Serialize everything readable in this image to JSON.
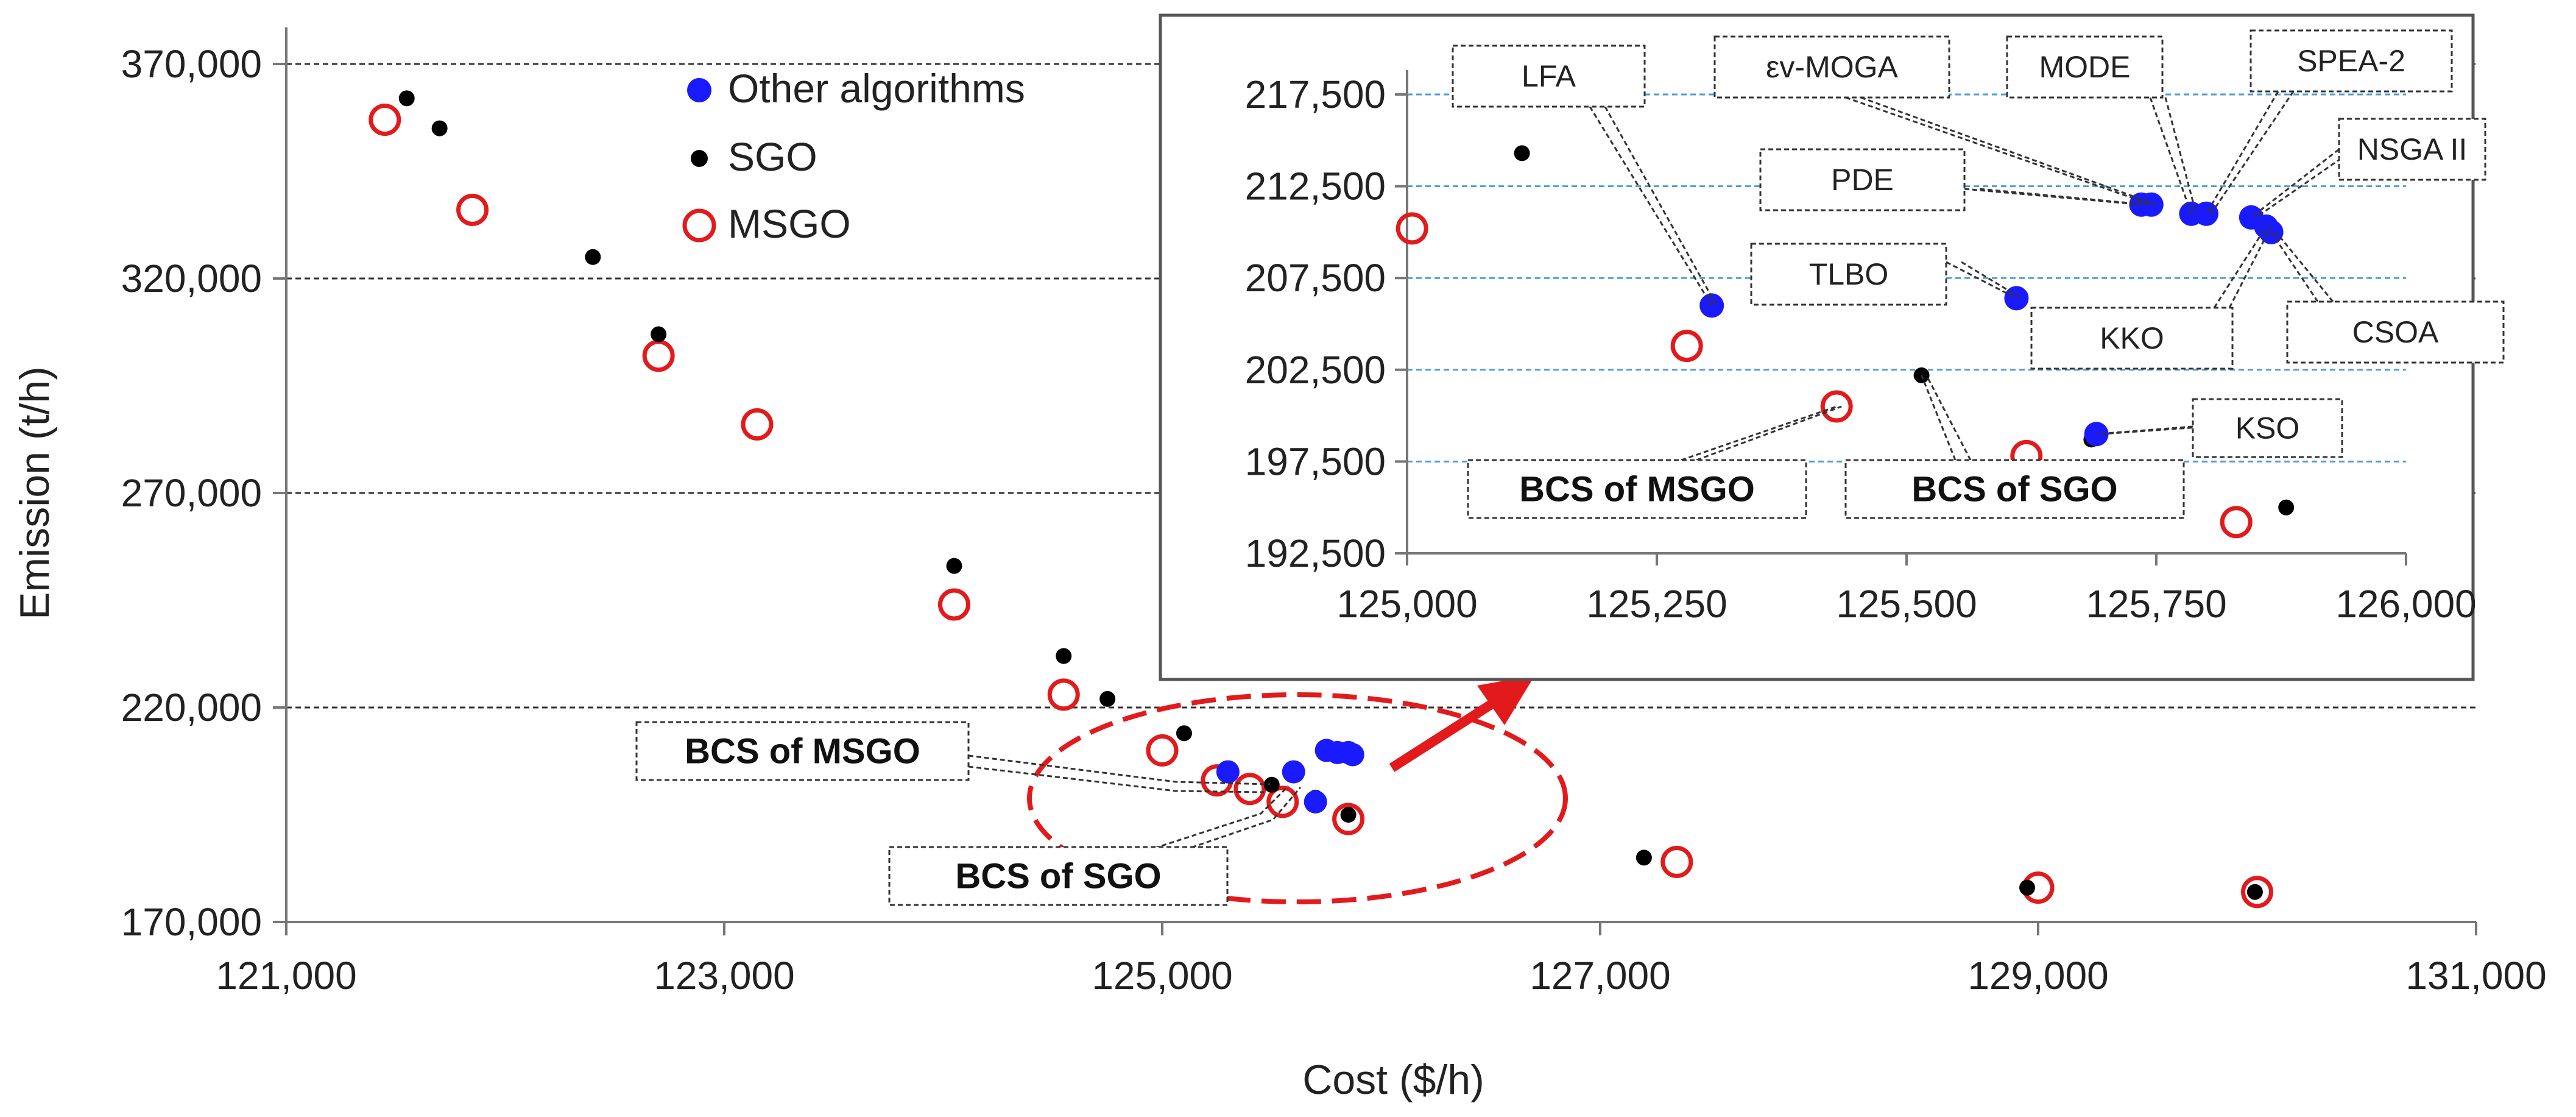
{
  "chart_data": [
    {
      "id": "main",
      "type": "scatter",
      "title": "",
      "xlabel": "Cost ($/h)",
      "ylabel": "Emission (t/h)",
      "xlim": [
        121000,
        131000
      ],
      "ylim": [
        170000,
        370000
      ],
      "x_ticks": [
        121000,
        123000,
        125000,
        127000,
        129000,
        131000
      ],
      "y_ticks": [
        170000,
        220000,
        270000,
        320000,
        370000
      ],
      "x_tick_labels": [
        "121,000",
        "123,000",
        "125,000",
        "127,000",
        "129,000",
        "131,000"
      ],
      "y_tick_labels": [
        "170,000",
        "220,000",
        "270,000",
        "320,000",
        "370,000"
      ],
      "grid": "horizontal-dashed",
      "legend": {
        "placement": "top-center",
        "entries": [
          "Other algorithms",
          "SGO",
          "MSGO"
        ]
      },
      "series": [
        {
          "name": "Other algorithms",
          "color": "#1a1aff",
          "marker": "filled-circle",
          "points": [
            [
              125300,
              205000
            ],
            [
              125600,
              205000
            ],
            [
              125700,
              198000
            ],
            [
              125750,
              210000
            ],
            [
              125800,
              209500
            ],
            [
              125850,
              209500
            ],
            [
              125870,
              209000
            ]
          ]
        },
        {
          "name": "SGO",
          "color": "#000000",
          "marker": "dot",
          "points": [
            [
              121550,
              362000
            ],
            [
              121700,
              355000
            ],
            [
              122400,
              325000
            ],
            [
              122700,
              307000
            ],
            [
              124050,
              253000
            ],
            [
              124550,
              232000
            ],
            [
              124750,
              222000
            ],
            [
              125100,
              214000
            ],
            [
              125500,
              202000
            ],
            [
              125700,
              199000
            ],
            [
              125850,
              195000
            ],
            [
              127200,
              185000
            ],
            [
              128950,
              178000
            ],
            [
              129990,
              177000
            ]
          ]
        },
        {
          "name": "MSGO",
          "color": "#e31a1c",
          "marker": "hollow-circle",
          "points": [
            [
              121450,
              357000
            ],
            [
              121850,
              336000
            ],
            [
              122700,
              302000
            ],
            [
              123150,
              286000
            ],
            [
              124050,
              244000
            ],
            [
              124550,
              223000
            ],
            [
              125000,
              210000
            ],
            [
              125250,
              203000
            ],
            [
              125400,
              201000
            ],
            [
              125550,
              198000
            ],
            [
              125850,
              194000
            ],
            [
              127350,
              184000
            ],
            [
              129000,
              178000
            ],
            [
              130000,
              177000
            ]
          ]
        }
      ],
      "annotations": [
        {
          "label": "BCS of MSGO",
          "bold": true
        },
        {
          "label": "BCS of SGO",
          "bold": true
        }
      ],
      "highlight": {
        "shape": "dashed-ellipse",
        "color": "#e31a1c",
        "arrow_to": "inset"
      }
    },
    {
      "id": "inset",
      "type": "scatter",
      "title": "",
      "xlabel": "",
      "ylabel": "",
      "xlim": [
        125000,
        126000
      ],
      "ylim": [
        192500,
        217500
      ],
      "x_ticks": [
        125000,
        125250,
        125500,
        125750,
        126000
      ],
      "y_ticks": [
        192500,
        197500,
        202500,
        207500,
        212500,
        217500
      ],
      "x_tick_labels": [
        "125,000",
        "125,250",
        "125,500",
        "125,750",
        "126,000"
      ],
      "y_tick_labels": [
        "192,500",
        "197,500",
        "202,500",
        "207,500",
        "212,500",
        "217,500"
      ],
      "grid": "horizontal-dashed",
      "series": [
        {
          "name": "Other algorithms",
          "color": "#1a1aff",
          "marker": "filled-circle",
          "points": [
            {
              "label": "LFA",
              "x": 125305,
              "y": 206000
            },
            {
              "label": "TLBO",
              "x": 125610,
              "y": 206400
            },
            {
              "label": "PDE",
              "x": 125735,
              "y": 211500
            },
            {
              "label": "εv-MOGA",
              "x": 125745,
              "y": 211500
            },
            {
              "label": "MODE",
              "x": 125785,
              "y": 211000
            },
            {
              "label": "SPEA-2",
              "x": 125800,
              "y": 211000
            },
            {
              "label": "NSGA II",
              "x": 125845,
              "y": 210800
            },
            {
              "label": "KKO",
              "x": 125860,
              "y": 210300
            },
            {
              "label": "CSOA",
              "x": 125865,
              "y": 210000
            },
            {
              "label": "KSO",
              "x": 125690,
              "y": 199000
            }
          ]
        },
        {
          "name": "SGO",
          "color": "#000000",
          "marker": "dot",
          "points": [
            [
              125115,
              214300
            ],
            [
              125515,
              202200
            ],
            [
              125685,
              198700
            ],
            [
              125880,
              195000
            ]
          ]
        },
        {
          "name": "MSGO",
          "color": "#e31a1c",
          "marker": "hollow-circle",
          "points": [
            [
              125005,
              210200
            ],
            [
              125280,
              203800
            ],
            [
              125430,
              200500
            ],
            [
              125620,
              197800
            ],
            [
              125830,
              194200
            ]
          ]
        }
      ],
      "annotations": [
        {
          "label": "LFA",
          "target": [
            125305,
            206000
          ]
        },
        {
          "label": "εv-MOGA",
          "target": [
            125745,
            211500
          ]
        },
        {
          "label": "MODE",
          "target": [
            125785,
            211000
          ]
        },
        {
          "label": "SPEA-2",
          "target": [
            125800,
            211000
          ]
        },
        {
          "label": "NSGA II",
          "target": [
            125845,
            210800
          ]
        },
        {
          "label": "PDE",
          "target": [
            125735,
            211500
          ]
        },
        {
          "label": "TLBO",
          "target": [
            125610,
            206400
          ]
        },
        {
          "label": "KKO",
          "target": [
            125860,
            210300
          ]
        },
        {
          "label": "CSOA",
          "target": [
            125865,
            210000
          ]
        },
        {
          "label": "KSO",
          "target": [
            125690,
            199000
          ]
        },
        {
          "label": "BCS of MSGO",
          "bold": true,
          "target": [
            125430,
            200500
          ]
        },
        {
          "label": "BCS of SGO",
          "bold": true,
          "target": [
            125515,
            202200
          ]
        }
      ]
    }
  ]
}
